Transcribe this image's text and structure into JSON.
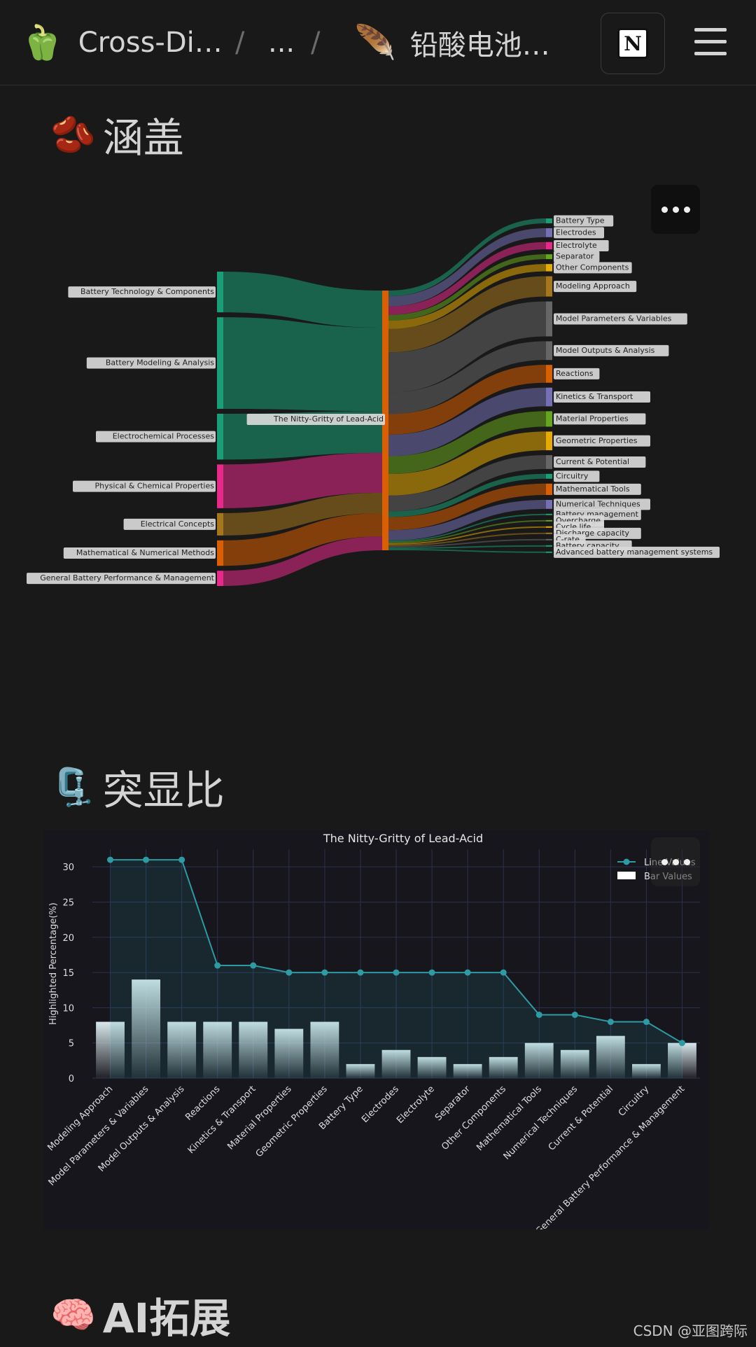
{
  "topbar": {
    "workspace_icon": "🫑",
    "workspace": "Cross-Di…",
    "sep1": "/",
    "ellipsis": "...",
    "sep2": "/",
    "page_icon": "🪶",
    "page": "铅酸电池…",
    "notion_logo": "N",
    "icons": {
      "notion": "notion-logo-icon",
      "menu": "hamburger-menu-icon"
    }
  },
  "sections": {
    "coverage": {
      "icon": "🫘",
      "title": "涵盖"
    },
    "highlight": {
      "icon": "🗜️",
      "title": "突显比"
    },
    "ai": {
      "icon": "🧠",
      "title": "AI拓展"
    }
  },
  "footer": {
    "credit": "CSDN @亚图跨际"
  },
  "colors": {
    "background": "#191919",
    "chart_bg": "#17161c",
    "line": "#2e9aa3",
    "bar_top": "#d8e8ec"
  },
  "chart_data": [
    {
      "type": "sankey",
      "center_node": "The Nitty-Gritty of Lead-Acid",
      "sources": [
        {
          "name": "Battery Technology & Components",
          "value": 4,
          "color": "#1a9e77"
        },
        {
          "name": "Battery Modeling & Analysis",
          "value": 9,
          "color": "#1a9e77"
        },
        {
          "name": "Electrochemical Processes",
          "value": 4.5,
          "color": "#1a9e77"
        },
        {
          "name": "Physical & Chemical Properties",
          "value": 4.3,
          "color": "#e7298a"
        },
        {
          "name": "Electrical Concepts",
          "value": 2.2,
          "color": "#a6761d"
        },
        {
          "name": "Mathematical & Numerical Methods",
          "value": 2.5,
          "color": "#d95f02"
        },
        {
          "name": "General Battery Performance & Management",
          "value": 1.5,
          "color": "#e7298a"
        }
      ],
      "targets": [
        {
          "name": "Battery Type",
          "value": 0.6,
          "color": "#1b9e77"
        },
        {
          "name": "Electrodes",
          "value": 1.1,
          "color": "#7570b3"
        },
        {
          "name": "Electrolyte",
          "value": 0.9,
          "color": "#e7298a"
        },
        {
          "name": "Separator",
          "value": 0.6,
          "color": "#66a61e"
        },
        {
          "name": "Other Components",
          "value": 0.9,
          "color": "#e6ab02"
        },
        {
          "name": "Modeling Approach",
          "value": 2.5,
          "color": "#a6761d"
        },
        {
          "name": "Model Parameters & Variables",
          "value": 4.3,
          "color": "#666666"
        },
        {
          "name": "Model Outputs & Analysis",
          "value": 2.3,
          "color": "#666666"
        },
        {
          "name": "Reactions",
          "value": 2.2,
          "color": "#d95f02"
        },
        {
          "name": "Kinetics & Transport",
          "value": 2.3,
          "color": "#7570b3"
        },
        {
          "name": "Material Properties",
          "value": 1.9,
          "color": "#66a61e"
        },
        {
          "name": "Geometric Properties",
          "value": 2.3,
          "color": "#e6ab02"
        },
        {
          "name": "Current & Potential",
          "value": 1.7,
          "color": "#666666"
        },
        {
          "name": "Circuitry",
          "value": 0.6,
          "color": "#1b9e77"
        },
        {
          "name": "Mathematical Tools",
          "value": 1.4,
          "color": "#d95f02"
        },
        {
          "name": "Numerical Techniques",
          "value": 1.1,
          "color": "#7570b3"
        },
        {
          "name": "Battery management",
          "value": 0.15,
          "color": "#1b9e77"
        },
        {
          "name": "Overcharge",
          "value": 0.15,
          "color": "#66a61e"
        },
        {
          "name": "Cycle life",
          "value": 0.15,
          "color": "#e6ab02"
        },
        {
          "name": "Discharge capacity",
          "value": 0.15,
          "color": "#a6761d"
        },
        {
          "name": "C-rate",
          "value": 0.15,
          "color": "#666666"
        },
        {
          "name": "Battery capacity",
          "value": 0.15,
          "color": "#1b9e77"
        },
        {
          "name": "Advanced battery management systems",
          "value": 0.15,
          "color": "#1b9e77"
        }
      ]
    },
    {
      "type": "bar",
      "title": "The Nitty-Gritty of Lead-Acid",
      "ylabel": "Highlighted Percentage(%)",
      "xlabel": "",
      "ylim": [
        0,
        32.5
      ],
      "yticks": [
        0,
        5,
        10,
        15,
        20,
        25,
        30
      ],
      "grid": true,
      "legend_position": "top-right",
      "categories": [
        "Modeling Approach",
        "Model Parameters & Variables",
        "Model Outputs & Analysis",
        "Reactions",
        "Kinetics & Transport",
        "Material Properties",
        "Geometric Properties",
        "Battery Type",
        "Electrodes",
        "Electrolyte",
        "Separator",
        "Other Components",
        "Mathematical Tools",
        "Numerical Techniques",
        "Current & Potential",
        "Circuitry",
        "General Battery Performance & Management"
      ],
      "series": [
        {
          "name": "Line Values",
          "kind": "line",
          "values": [
            31,
            31,
            31,
            16,
            16,
            15,
            15,
            15,
            15,
            15,
            15,
            15,
            9,
            9,
            8,
            8,
            5
          ]
        },
        {
          "name": "Bar Values",
          "kind": "bar",
          "values": [
            8,
            14,
            8,
            8,
            8,
            7,
            8,
            2,
            4,
            3,
            2,
            3,
            5,
            4,
            6,
            2,
            5
          ]
        }
      ]
    }
  ]
}
